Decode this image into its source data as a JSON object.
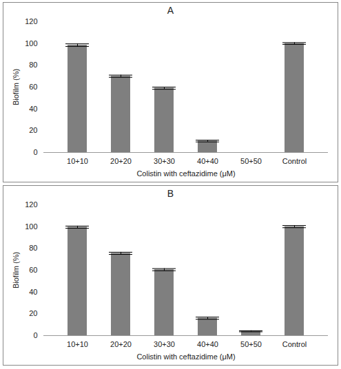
{
  "chart_data": [
    {
      "type": "bar",
      "title": "A",
      "x_label": "Colistin with ceftazidime (μM)",
      "y_label": "Biofilm (%)",
      "categories": [
        "10+10",
        "20+20",
        "30+30",
        "40+40",
        "50+50",
        "Control"
      ],
      "values": [
        98.5,
        70,
        59,
        10.5,
        0,
        100
      ],
      "errors": [
        1.2,
        1,
        1,
        0.8,
        0,
        0.8
      ],
      "color": "#7f7f7f",
      "ylim": [
        0,
        120
      ],
      "yticks": [
        0,
        20,
        40,
        60,
        80,
        100,
        120
      ],
      "grid": false
    },
    {
      "type": "bar",
      "title": "B",
      "x_label": "Colistin with ceftazidime (μM)",
      "y_label": "Biofilm (%)",
      "categories": [
        "10+10",
        "20+20",
        "30+30",
        "40+40",
        "50+50",
        "Control"
      ],
      "values": [
        99.5,
        75.5,
        60.5,
        16,
        4,
        100
      ],
      "errors": [
        1,
        1,
        1,
        1,
        0.5,
        1
      ],
      "color": "#7f7f7f",
      "ylim": [
        0,
        120
      ],
      "yticks": [
        0,
        20,
        40,
        60,
        80,
        100,
        120
      ],
      "grid": false
    }
  ]
}
